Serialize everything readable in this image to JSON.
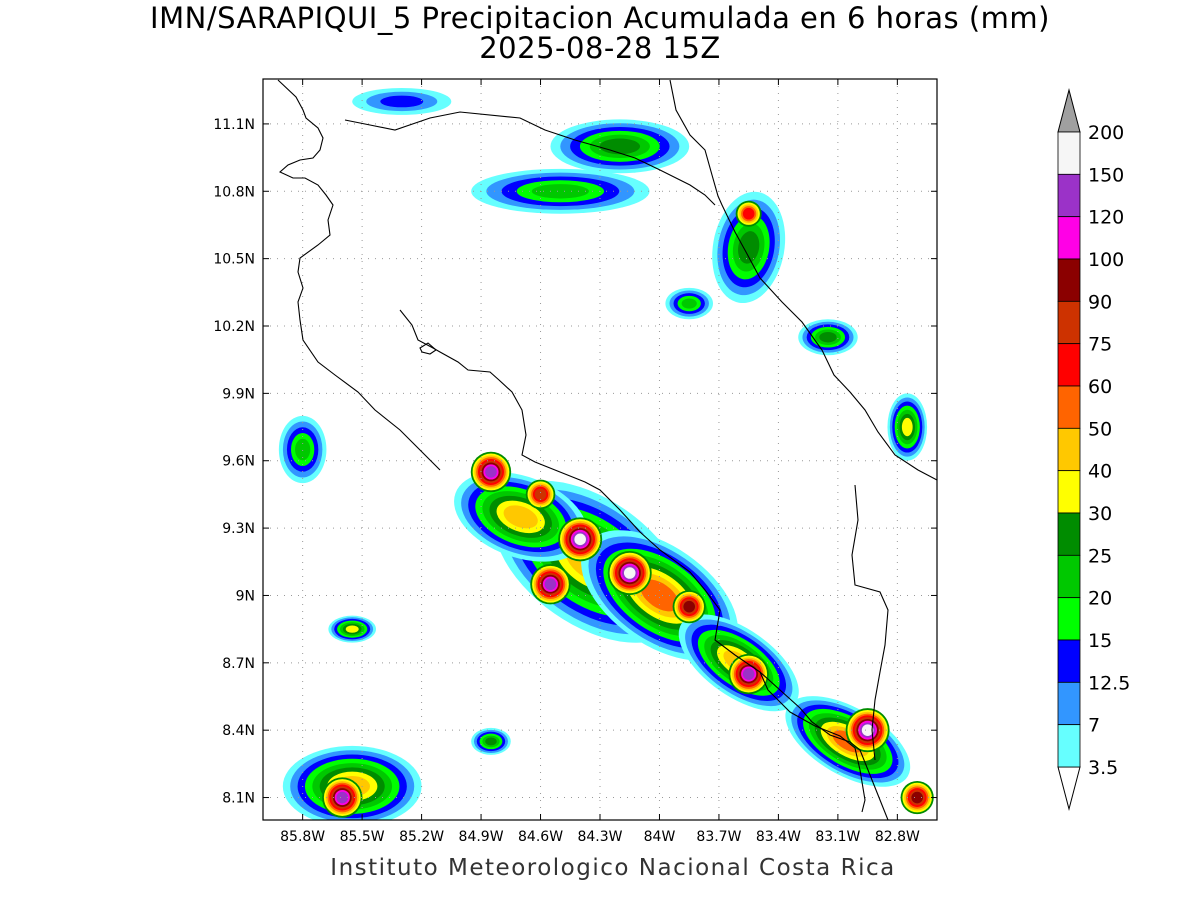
{
  "title": {
    "line1": "IMN/SARAPIQUI_5 Precipitacion Acumulada en 6 horas (mm)",
    "line2": "2025-08-28 15Z"
  },
  "footer": {
    "credit": "Instituto Meteorologico Nacional Costa Rica"
  },
  "map": {
    "lon_range": [
      -86.0,
      -82.6
    ],
    "lat_range": [
      8.0,
      11.3
    ],
    "lat_ticks": [
      {
        "value": 11.1,
        "label": "11.1N"
      },
      {
        "value": 10.8,
        "label": "10.8N"
      },
      {
        "value": 10.5,
        "label": "10.5N"
      },
      {
        "value": 10.2,
        "label": "10.2N"
      },
      {
        "value": 9.9,
        "label": "9.9N"
      },
      {
        "value": 9.6,
        "label": "9.6N"
      },
      {
        "value": 9.3,
        "label": "9.3N"
      },
      {
        "value": 9.0,
        "label": "9N"
      },
      {
        "value": 8.7,
        "label": "8.7N"
      },
      {
        "value": 8.4,
        "label": "8.4N"
      },
      {
        "value": 8.1,
        "label": "8.1N"
      }
    ],
    "lon_ticks": [
      {
        "value": -85.8,
        "label": "85.8W"
      },
      {
        "value": -85.5,
        "label": "85.5W"
      },
      {
        "value": -85.2,
        "label": "85.2W"
      },
      {
        "value": -84.9,
        "label": "84.9W"
      },
      {
        "value": -84.6,
        "label": "84.6W"
      },
      {
        "value": -84.3,
        "label": "84.3W"
      },
      {
        "value": -84.0,
        "label": "84W"
      },
      {
        "value": -83.7,
        "label": "83.7W"
      },
      {
        "value": -83.4,
        "label": "83.4W"
      },
      {
        "value": -83.1,
        "label": "83.1W"
      },
      {
        "value": -82.8,
        "label": "82.8W"
      }
    ],
    "grid": "dotted",
    "rain_cells": [
      {
        "lon": -84.4,
        "lat": 9.25,
        "peak_mm": 150
      },
      {
        "lon": -84.15,
        "lat": 9.1,
        "peak_mm": 150
      },
      {
        "lon": -84.85,
        "lat": 9.55,
        "peak_mm": 120
      },
      {
        "lon": -84.55,
        "lat": 9.05,
        "peak_mm": 120
      },
      {
        "lon": -83.55,
        "lat": 8.65,
        "peak_mm": 120
      },
      {
        "lon": -82.95,
        "lat": 8.4,
        "peak_mm": 150
      },
      {
        "lon": -85.6,
        "lat": 8.1,
        "peak_mm": 120
      },
      {
        "lon": -83.55,
        "lat": 10.7,
        "peak_mm": 60
      },
      {
        "lon": -84.6,
        "lat": 9.45,
        "peak_mm": 75
      },
      {
        "lon": -83.85,
        "lat": 8.95,
        "peak_mm": 90
      },
      {
        "lon": -82.7,
        "lat": 8.1,
        "peak_mm": 90
      }
    ]
  },
  "colorbar": {
    "levels": [
      "200",
      "150",
      "120",
      "100",
      "90",
      "75",
      "60",
      "50",
      "40",
      "30",
      "25",
      "20",
      "15",
      "12.5",
      "7",
      "3.5"
    ],
    "colors": [
      "#f6f6f6",
      "#9b32c8",
      "#ff00e6",
      "#8b0000",
      "#cd3200",
      "#ff0000",
      "#ff6400",
      "#ffc800",
      "#ffff00",
      "#008c00",
      "#00c800",
      "#00ff00",
      "#0000ff",
      "#3296ff",
      "#66ffff"
    ]
  }
}
